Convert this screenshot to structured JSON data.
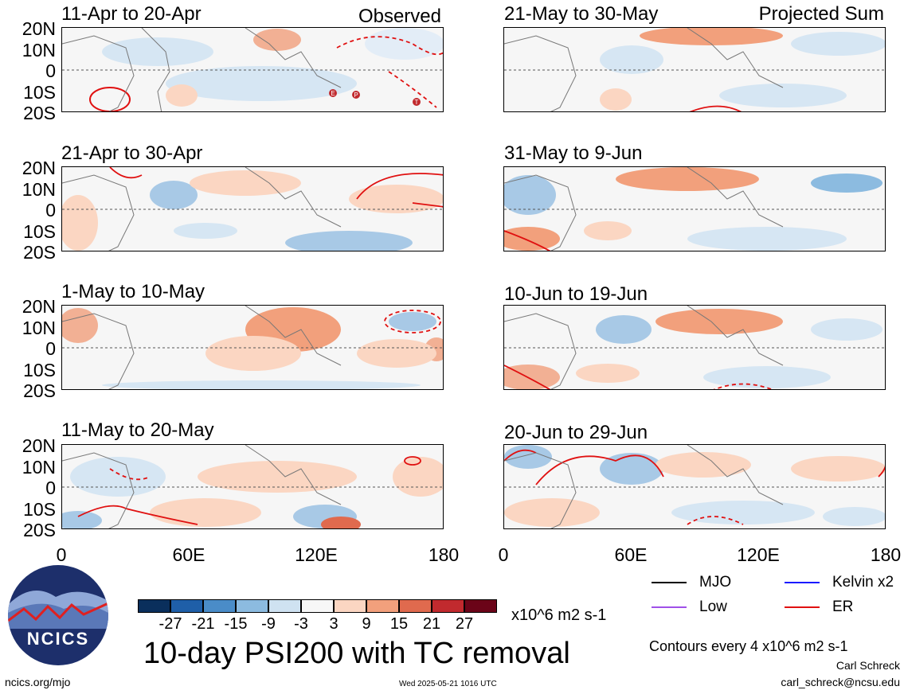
{
  "header": {
    "observed_label": "Observed",
    "projected_label": "Projected Sum"
  },
  "panels": [
    {
      "title": "11-Apr to 20-Apr"
    },
    {
      "title": "21-Apr to 30-Apr"
    },
    {
      "title": "1-May to 10-May"
    },
    {
      "title": "11-May to 20-May"
    },
    {
      "title": "21-May to 30-May"
    },
    {
      "title": "31-May to 9-Jun"
    },
    {
      "title": "10-Jun to 19-Jun"
    },
    {
      "title": "20-Jun to 29-Jun"
    }
  ],
  "tc_markers": [
    "E",
    "P",
    "T"
  ],
  "lat_ticks": [
    "20N",
    "10N",
    "0",
    "10S",
    "20S"
  ],
  "lon_ticks": [
    "0",
    "60E",
    "120E",
    "180"
  ],
  "colorbar": {
    "labels": [
      "-27",
      "-21",
      "-15",
      "-9",
      "-3",
      "3",
      "9",
      "15",
      "21",
      "27"
    ],
    "colors": [
      "#0a2f5c",
      "#1f5fa8",
      "#4a8cc8",
      "#8cbbe0",
      "#cfe2f1",
      "#f7f7f7",
      "#fbd6c2",
      "#f2a07c",
      "#e06a4e",
      "#c12a2e",
      "#6b0418"
    ],
    "units": "x10^6 m2 s-1"
  },
  "main_title": "10-day PSI200 with TC removal",
  "legend": {
    "items": [
      {
        "label": "MJO",
        "color": "#000000"
      },
      {
        "label": "Kelvin x2",
        "color": "#1a1aff"
      },
      {
        "label": "Low",
        "color": "#a050e8"
      },
      {
        "label": "ER",
        "color": "#e01010"
      }
    ],
    "contour_note": "Contours every 4 x10^6 m2 s-1"
  },
  "logo_text": "NCICS",
  "footer": {
    "website": "ncics.org/mjo",
    "timestamp": "Wed 2025-05-21 1016 UTC",
    "author": "Carl Schreck",
    "email": "carl_schreck@ncsu.edu"
  }
}
